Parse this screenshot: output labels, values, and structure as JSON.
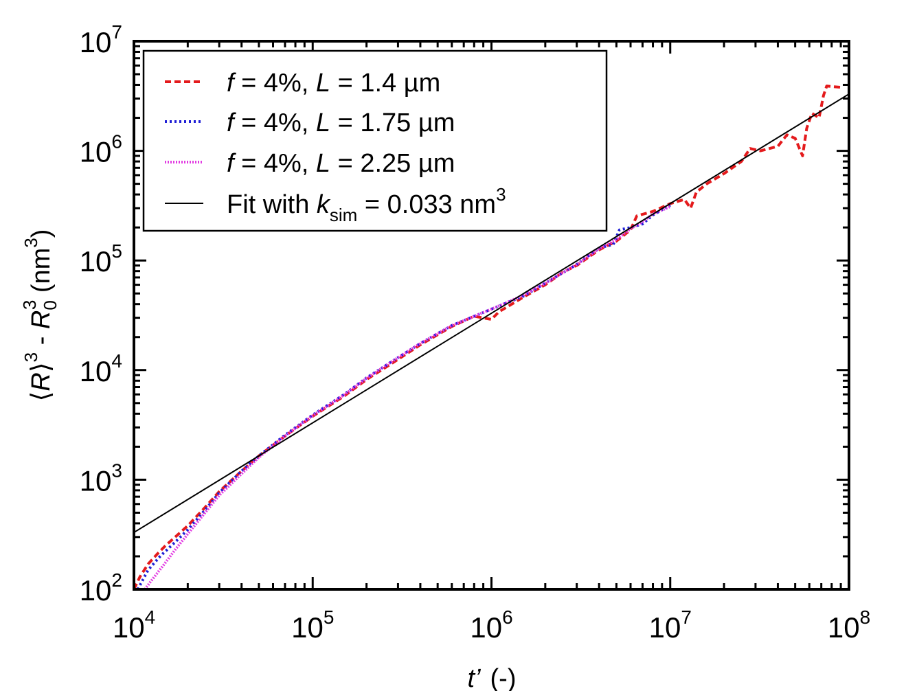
{
  "chart_data": {
    "type": "line",
    "xscale": "log",
    "yscale": "log",
    "xlim": [
      10000,
      100000000
    ],
    "ylim": [
      100,
      10000000
    ],
    "x_ticks": [
      {
        "base": "10",
        "exp": "4",
        "value": 10000
      },
      {
        "base": "10",
        "exp": "5",
        "value": 100000
      },
      {
        "base": "10",
        "exp": "6",
        "value": 1000000
      },
      {
        "base": "10",
        "exp": "7",
        "value": 10000000
      },
      {
        "base": "10",
        "exp": "8",
        "value": 100000000
      }
    ],
    "y_ticks": [
      {
        "base": "10",
        "exp": "2",
        "value": 100
      },
      {
        "base": "10",
        "exp": "3",
        "value": 1000
      },
      {
        "base": "10",
        "exp": "4",
        "value": 10000
      },
      {
        "base": "10",
        "exp": "5",
        "value": 100000
      },
      {
        "base": "10",
        "exp": "6",
        "value": 1000000
      },
      {
        "base": "10",
        "exp": "7",
        "value": 10000000
      }
    ],
    "xlabel": {
      "var": "t’",
      "unit": "(-)"
    },
    "ylabel": {
      "open": "⟨",
      "var1": "R",
      "close": "⟩",
      "exp1": "3",
      "minus": " - ",
      "var2": "R",
      "sub2": "0",
      "exp2": "3",
      "unit_open": "  (nm",
      "unit_exp": "3",
      "unit_close": ")"
    },
    "legend_position": "top-left",
    "series": [
      {
        "name": "f = 4%, L = 1.4 µm",
        "legend": {
          "f_var": "f",
          "f_val": " = 4%, ",
          "l_var": "L",
          "l_val": " = 1.4 µm"
        },
        "color": "#e41a1c",
        "style": "dashed",
        "points": [
          [
            10000,
            100
          ],
          [
            10800,
            130
          ],
          [
            12000,
            170
          ],
          [
            13500,
            210
          ],
          [
            15000,
            250
          ],
          [
            17000,
            300
          ],
          [
            20000,
            380
          ],
          [
            25000,
            560
          ],
          [
            30000,
            780
          ],
          [
            40000,
            1200
          ],
          [
            50000,
            1650
          ],
          [
            70000,
            2500
          ],
          [
            100000,
            3800
          ],
          [
            150000,
            5800
          ],
          [
            200000,
            8200
          ],
          [
            300000,
            12500
          ],
          [
            400000,
            17000
          ],
          [
            600000,
            25000
          ],
          [
            800000,
            31000
          ],
          [
            1000000,
            29000
          ],
          [
            1100000,
            34000
          ],
          [
            1500000,
            46000
          ],
          [
            2000000,
            60000
          ],
          [
            2500000,
            78000
          ],
          [
            3000000,
            90000
          ],
          [
            4000000,
            125000
          ],
          [
            5000000,
            150000
          ],
          [
            6000000,
            190000
          ],
          [
            6500000,
            255000
          ],
          [
            8000000,
            280000
          ],
          [
            10000000,
            330000
          ],
          [
            12000000,
            360000
          ],
          [
            13000000,
            300000
          ],
          [
            14000000,
            420000
          ],
          [
            16000000,
            500000
          ],
          [
            20000000,
            620000
          ],
          [
            25000000,
            800000
          ],
          [
            28000000,
            1050000
          ],
          [
            32000000,
            1000000
          ],
          [
            40000000,
            1100000
          ],
          [
            45000000,
            1400000
          ],
          [
            50000000,
            1300000
          ],
          [
            55000000,
            900000
          ],
          [
            58000000,
            1600000
          ],
          [
            62000000,
            2200000
          ],
          [
            68000000,
            2000000
          ],
          [
            72000000,
            3200000
          ],
          [
            75000000,
            3900000
          ],
          [
            90000000,
            3800000
          ]
        ]
      },
      {
        "name": "f = 4%, L = 1.75 µm",
        "legend": {
          "f_var": "f",
          "f_val": " = 4%, ",
          "l_var": "L",
          "l_val": " = 1.75 µm"
        },
        "color": "#1f1fd6",
        "style": "dotted",
        "points": [
          [
            10500,
            100
          ],
          [
            12000,
            150
          ],
          [
            14000,
            200
          ],
          [
            17000,
            270
          ],
          [
            20000,
            350
          ],
          [
            25000,
            530
          ],
          [
            30000,
            760
          ],
          [
            40000,
            1200
          ],
          [
            50000,
            1650
          ],
          [
            70000,
            2550
          ],
          [
            100000,
            3900
          ],
          [
            150000,
            6000
          ],
          [
            200000,
            8500
          ],
          [
            300000,
            13000
          ],
          [
            400000,
            17500
          ],
          [
            600000,
            25500
          ],
          [
            1000000,
            36000
          ],
          [
            1500000,
            47000
          ],
          [
            2000000,
            62000
          ],
          [
            3000000,
            92000
          ],
          [
            4000000,
            130000
          ],
          [
            4800000,
            140000
          ],
          [
            5200000,
            190000
          ],
          [
            6000000,
            200000
          ],
          [
            7000000,
            215000
          ],
          [
            8000000,
            260000
          ],
          [
            10000000,
            320000
          ]
        ]
      },
      {
        "name": "f = 4%, L = 2.25 µm",
        "legend": {
          "f_var": "f",
          "f_val": " = 4%, ",
          "l_var": "L",
          "l_val": " = 2.25 µm"
        },
        "color": "#e23be2",
        "style": "dotted",
        "points": [
          [
            11500,
            100
          ],
          [
            13000,
            130
          ],
          [
            15000,
            175
          ],
          [
            17000,
            230
          ],
          [
            20000,
            320
          ],
          [
            25000,
            500
          ],
          [
            30000,
            720
          ],
          [
            40000,
            1130
          ],
          [
            50000,
            1600
          ],
          [
            70000,
            2500
          ],
          [
            100000,
            3850
          ],
          [
            150000,
            5950
          ],
          [
            200000,
            8400
          ],
          [
            300000,
            13000
          ],
          [
            400000,
            17500
          ],
          [
            600000,
            25500
          ],
          [
            1000000,
            36000
          ],
          [
            1500000,
            48000
          ],
          [
            2000000,
            62000
          ],
          [
            3000000,
            92000
          ],
          [
            4000000,
            128000
          ],
          [
            5000000,
            155000
          ],
          [
            6000000,
            195000
          ],
          [
            7000000,
            225000
          ],
          [
            8000000,
            265000
          ],
          [
            10000000,
            310000
          ]
        ]
      },
      {
        "name": "Fit with k_sim = 0.033 nm3",
        "legend": {
          "text": "Fit with ",
          "k_var": "k",
          "k_sub": "sim",
          "k_val": " = 0.033 nm",
          "k_exp": "3"
        },
        "color": "#000000",
        "style": "solid",
        "points": [
          [
            10000,
            330
          ],
          [
            100000000,
            3300000
          ]
        ]
      }
    ]
  }
}
